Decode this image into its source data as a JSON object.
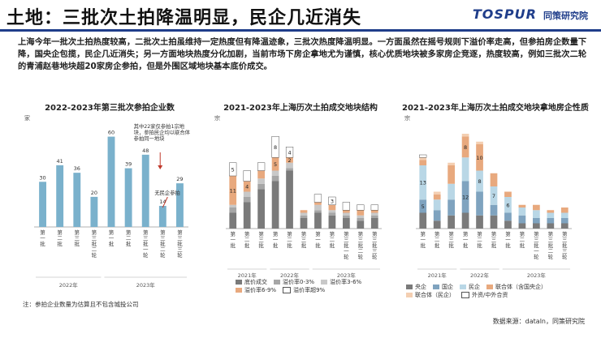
{
  "header": {
    "title": "土地：三批次土拍降温明显，民企几近消失",
    "brand": "TOSPUR",
    "brand_sub": "同策研究院"
  },
  "body_text": "上海今年一批次土拍热度较高，二批次土拍虽维持一定热度但有降温迹象，三批次热度降温明显。一方面虽然在摇号规则下溢价率走高，但参拍房企数量下降，国央企包揽，民企几近消失；另一方面地块热度分化加剧，当前市场下房企拿地尤为谨慎，核心优质地块被多家房企竞逐，热度较高，例如三批次二轮的青浦赵巷地块超20家房企参拍，但是外围区域地块基本底价成交。",
  "footnote": "注：参拍企业数量为估算且不包含城投公司",
  "source": "数据来源：dataln，同策研究院",
  "colors": {
    "brand": "#1f3d8a",
    "bar_blue": "#7ab1cc",
    "gray": "#7a7a7a",
    "mid_gray": "#a6a6a6",
    "light_gray": "#c8c8c8",
    "orange": "#e8a97e",
    "light_blue": "#b9d7e6",
    "steel": "#7fa3bf",
    "light_orange": "#f4cfb2",
    "red": "#c0392b"
  },
  "chart_data": [
    {
      "id": "chart1",
      "type": "bar",
      "title": "2022-2023年第三批次参拍企业数",
      "ylabel": "家",
      "ylim": [
        0,
        70
      ],
      "categories": [
        "第一批",
        "第二批",
        "第三批",
        "第三批二轮",
        "第一批",
        "第二批",
        "第三批一轮",
        "第三批二轮",
        "第三批三轮"
      ],
      "values": [
        30,
        41,
        36,
        20,
        60,
        39,
        48,
        14,
        29
      ],
      "groups": [
        {
          "label": "2022年",
          "start": 0,
          "end": 3
        },
        {
          "label": "2023年",
          "start": 4,
          "end": 8
        }
      ],
      "annotations": [
        {
          "text": "其中22家仅参拍1宗地块，参拍民企均以联合体参拍同一地块",
          "target": 6
        },
        {
          "text": "无民企参拍",
          "target": 7
        }
      ]
    },
    {
      "id": "chart2",
      "type": "stacked_bar",
      "title": "2021-2023年上海历次土拍成交地块结构",
      "ylabel": "宗",
      "ylim": [
        0,
        40
      ],
      "categories": [
        "第一批",
        "第二批",
        "第三批",
        "第一批",
        "第二批",
        "第三批",
        "第一批",
        "第二批",
        "第三批一轮",
        "第三批二轮",
        "第三批三轮"
      ],
      "groups": [
        {
          "label": "2021年",
          "start": 0,
          "end": 2
        },
        {
          "label": "2022年",
          "start": 3,
          "end": 5
        },
        {
          "label": "2023年",
          "start": 6,
          "end": 10
        }
      ],
      "series": [
        {
          "name": "底价成交",
          "color": "#7a7a7a",
          "values": [
            6,
            10,
            15,
            18,
            22,
            4,
            6,
            5,
            4,
            3,
            4
          ]
        },
        {
          "name": "溢价率0-3%",
          "color": "#a6a6a6",
          "values": [
            2,
            2,
            2,
            2,
            1,
            1,
            1,
            1,
            1,
            1,
            1
          ]
        },
        {
          "name": "溢价率3-6%",
          "color": "#c8c8c8",
          "values": [
            1,
            2,
            2,
            2,
            2,
            1,
            2,
            1,
            1,
            1,
            1
          ]
        },
        {
          "name": "溢价率6-9%",
          "color": "#e8a97e",
          "values": [
            11,
            4,
            3,
            5,
            2,
            1,
            1,
            2,
            1,
            2,
            1
          ]
        },
        {
          "name": "溢价率超9%",
          "color": "#ffffff",
          "values": [
            5,
            4,
            3,
            8,
            4,
            0,
            3,
            3,
            3,
            2,
            2
          ]
        }
      ],
      "labels": [
        {
          "category": 0,
          "series": 3,
          "text": "11"
        },
        {
          "category": 0,
          "series": 4,
          "text": "5"
        },
        {
          "category": 1,
          "series": 3,
          "text": "4"
        },
        {
          "category": 3,
          "series": 3,
          "text": "5"
        },
        {
          "category": 3,
          "series": 4,
          "text": "8"
        },
        {
          "category": 4,
          "series": 3,
          "text": "2"
        },
        {
          "category": 4,
          "series": 4,
          "text": "4"
        },
        {
          "category": 7,
          "series": 4,
          "text": "3"
        }
      ]
    },
    {
      "id": "chart3",
      "type": "stacked_bar",
      "title": "2021-2023年上海历次土拍成交地块拿地房企性质",
      "ylabel": "宗",
      "ylim": [
        0,
        40
      ],
      "categories": [
        "第一批",
        "第二批",
        "第三批",
        "第一批",
        "第二批",
        "第三批",
        "第一批",
        "第二批",
        "第三批一轮",
        "第三批二轮",
        "第三批三轮"
      ],
      "groups": [
        {
          "label": "2021年",
          "start": 0,
          "end": 2
        },
        {
          "label": "2022年",
          "start": 3,
          "end": 5
        },
        {
          "label": "2023年",
          "start": 6,
          "end": 10
        }
      ],
      "series": [
        {
          "name": "央企",
          "color": "#7a7a7a",
          "values": [
            6,
            3,
            5,
            6,
            5,
            5,
            3,
            2,
            2,
            2,
            2
          ]
        },
        {
          "name": "国企",
          "color": "#7fa3bf",
          "values": [
            5,
            4,
            6,
            12,
            9,
            4,
            3,
            3,
            2,
            2,
            2
          ]
        },
        {
          "name": "民企",
          "color": "#b9d7e6",
          "values": [
            13,
            4,
            6,
            9,
            8,
            7,
            6,
            3,
            3,
            2,
            2
          ]
        },
        {
          "name": "联合体（含国央企）",
          "color": "#e8a97e",
          "values": [
            2,
            2,
            7,
            8,
            10,
            5,
            2,
            1,
            2,
            1,
            2
          ]
        },
        {
          "name": "联合体（民企）",
          "color": "#f4cfb2",
          "values": [
            1,
            1,
            1,
            1,
            1,
            0,
            0,
            0,
            0,
            0,
            0
          ]
        },
        {
          "name": "外资/中外合资",
          "color": "#ffffff",
          "values": [
            1,
            0,
            0,
            0,
            0,
            0,
            0,
            0,
            0,
            0,
            0
          ]
        }
      ],
      "labels": [
        {
          "category": 0,
          "series": 2,
          "text": "13"
        },
        {
          "category": 0,
          "series": 1,
          "text": "5"
        },
        {
          "category": 3,
          "series": 1,
          "text": "12"
        },
        {
          "category": 3,
          "series": 3,
          "text": "8"
        },
        {
          "category": 4,
          "series": 3,
          "text": "10"
        },
        {
          "category": 4,
          "series": 2,
          "text": "8"
        },
        {
          "category": 5,
          "series": 2,
          "text": "7"
        },
        {
          "category": 6,
          "series": 2,
          "text": "6"
        }
      ]
    }
  ]
}
